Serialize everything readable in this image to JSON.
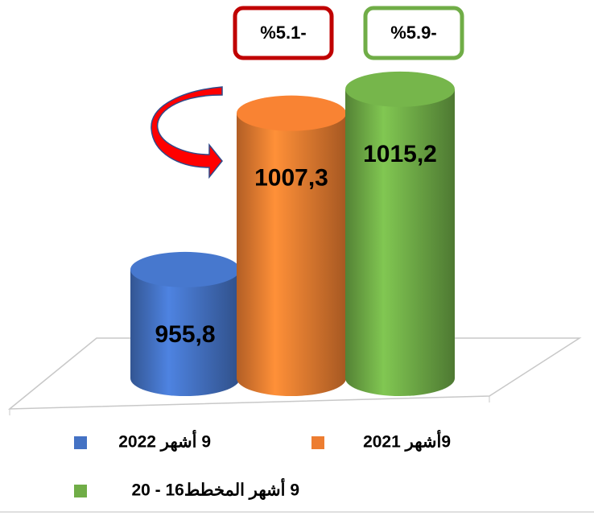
{
  "chart_data": {
    "type": "bar",
    "categories": [
      "9 أشهر 2022",
      "9أشهر 2021",
      "9 أشهر المخطط16 - 20"
    ],
    "values": [
      955.8,
      1007.3,
      1015.2
    ],
    "value_labels": [
      "955,8",
      "1007,3",
      "1015,2"
    ],
    "colors": [
      "#4472c4",
      "#ed7d31",
      "#70ad47"
    ],
    "ylim": [
      920,
      1030
    ],
    "annotations": [
      "%5.1-",
      "%5.9-"
    ],
    "annotation_colors": [
      "#c00000",
      "#70ad47"
    ]
  }
}
